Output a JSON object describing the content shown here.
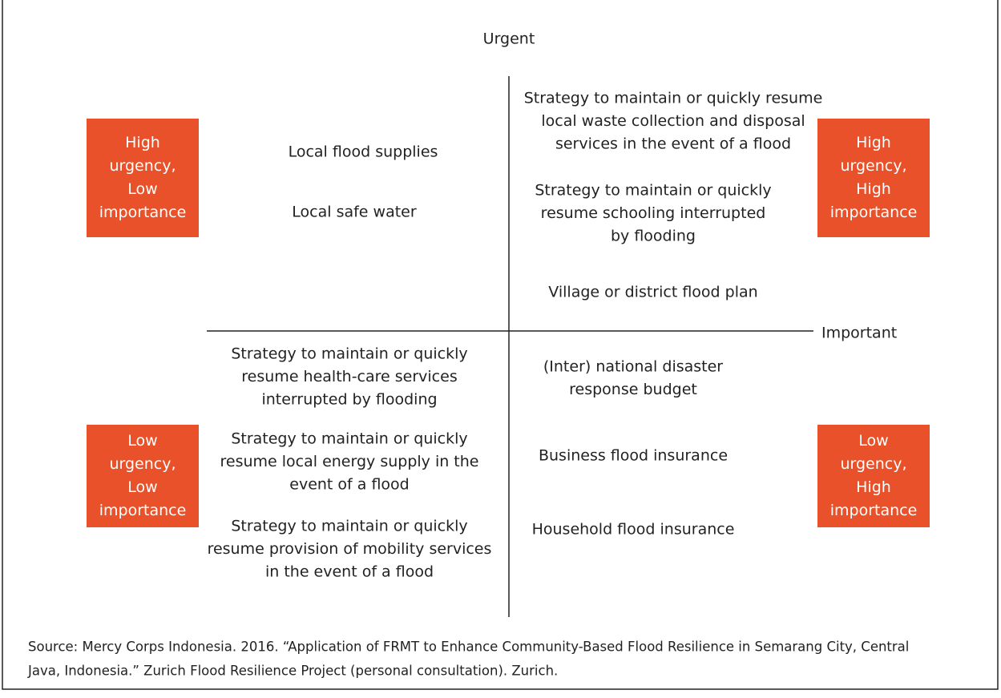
{
  "axes": {
    "vertical": "Urgent",
    "horizontal": "Important"
  },
  "quadrants": [
    {
      "label": [
        "High",
        "urgency,",
        "Low",
        "importance"
      ],
      "items": [
        [
          "Local flood supplies"
        ],
        [
          "Local safe water"
        ]
      ]
    },
    {
      "label": [
        "High",
        "urgency,",
        "High",
        "importance"
      ],
      "items": [
        [
          "Strategy to maintain or quickly resume",
          "local waste collection and disposal",
          "services in the event of a flood"
        ],
        [
          "Strategy to maintain or quickly",
          "resume schooling interrupted",
          "by flooding"
        ],
        [
          "Village or district flood plan"
        ]
      ]
    },
    {
      "label": [
        "Low",
        "urgency,",
        "Low",
        "importance"
      ],
      "items": [
        [
          "Strategy to maintain or quickly",
          "resume health-care services",
          "interrupted by flooding"
        ],
        [
          "Strategy to maintain or quickly",
          "resume local energy supply in the",
          "event of a flood"
        ],
        [
          "Strategy to maintain or quickly",
          "resume provision of mobility services",
          "in the event of a flood"
        ]
      ]
    },
    {
      "label": [
        "Low",
        "urgency,",
        "High",
        "importance"
      ],
      "items": [
        [
          "(Inter) national disaster",
          "response budget"
        ],
        [
          "Business flood insurance"
        ],
        [
          "Household flood insurance"
        ]
      ]
    }
  ],
  "source": [
    "Source: Mercy Corps Indonesia. 2016. “Application of FRMT to Enhance Community-Based Flood Resilience in Semarang City, Central",
    "Java, Indonesia.” Zurich Flood Resilience Project (personal consultation). Zurich."
  ]
}
